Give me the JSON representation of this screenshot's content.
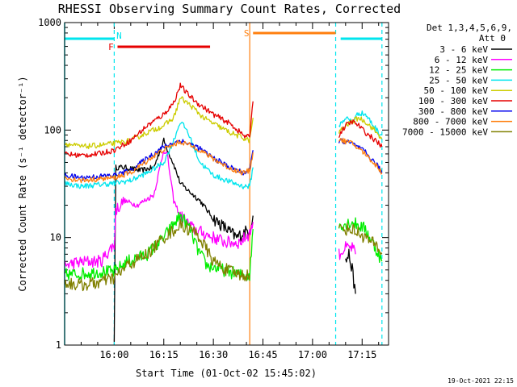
{
  "chart_data": {
    "type": "line",
    "title": "RHESSI Observing Summary Count Rates, Corrected",
    "xlabel": "Start Time (01-Oct-02 15:45:02)",
    "ylabel": "Corrected Count Rate (s⁻¹ detector⁻¹)",
    "yscale": "log",
    "ylim": [
      1,
      1000
    ],
    "xlim_minutes": [
      -15.0,
      83.0
    ],
    "x_units": "minutes after 16:00 (01-Oct-02)",
    "x_ticks": [
      {
        "label": "16:00",
        "m": 0
      },
      {
        "label": "16:15",
        "m": 15
      },
      {
        "label": "16:30",
        "m": 30
      },
      {
        "label": "16:45",
        "m": 45
      },
      {
        "label": "17:00",
        "m": 60
      },
      {
        "label": "17:15",
        "m": 75
      }
    ],
    "y_ticks": [
      {
        "label": "1",
        "v": 1
      },
      {
        "label": "10",
        "v": 10
      },
      {
        "label": "100",
        "v": 100
      },
      {
        "label": "1000",
        "v": 1000
      }
    ],
    "detectors": "Det 1,3,4,5,6,9,",
    "attenuator": "Att 0",
    "timestamp": "19-Oct-2021 22:15",
    "gap_minutes": [
      42.0,
      67.5
    ],
    "flags": [
      {
        "label": "N",
        "color": "#00e5ee",
        "segments": [
          [
            -15.0,
            0.0
          ],
          [
            68.5,
            81.0
          ]
        ]
      },
      {
        "label": "F",
        "color": "#e60000",
        "segments": [
          [
            1.0,
            29.0
          ]
        ]
      },
      {
        "label": "S",
        "color": "#ff7f0e",
        "segments": [
          [
            42.0,
            67.0
          ]
        ]
      }
    ],
    "vlines": [
      {
        "m": 0.0,
        "color": "#00e5ee",
        "style": "dashed"
      },
      {
        "m": 41.0,
        "color": "#ff7f0e",
        "style": "solid"
      },
      {
        "m": 67.0,
        "color": "#00e5ee",
        "style": "dashed"
      },
      {
        "m": 81.0,
        "color": "#00e5ee",
        "style": "dashed"
      }
    ],
    "series": [
      {
        "name": "3 - 6 keV",
        "color": "#000000",
        "points": [
          [
            0,
            1.2
          ],
          [
            0.5,
            45
          ],
          [
            3,
            45
          ],
          [
            8,
            42
          ],
          [
            12,
            45
          ],
          [
            15,
            80
          ],
          [
            18,
            48
          ],
          [
            20,
            32
          ],
          [
            22,
            28
          ],
          [
            26,
            22
          ],
          [
            30,
            15
          ],
          [
            34,
            12
          ],
          [
            37,
            10
          ],
          [
            39,
            11
          ],
          [
            41,
            12
          ],
          [
            42,
            16
          ],
          [
            70,
            6
          ],
          [
            71,
            7
          ],
          [
            72,
            5
          ],
          [
            73,
            3
          ]
        ]
      },
      {
        "name": "6 - 12 keV",
        "color": "#ff00ff",
        "points": [
          [
            -15,
            5.5
          ],
          [
            -12,
            5.8
          ],
          [
            -8,
            6
          ],
          [
            -4,
            6
          ],
          [
            -1,
            8
          ],
          [
            0,
            8.5
          ],
          [
            0.5,
            18
          ],
          [
            3,
            22
          ],
          [
            7,
            20
          ],
          [
            12,
            25
          ],
          [
            15,
            65
          ],
          [
            16,
            60
          ],
          [
            18,
            22
          ],
          [
            20,
            16
          ],
          [
            24,
            12
          ],
          [
            30,
            10
          ],
          [
            34,
            9
          ],
          [
            38,
            9
          ],
          [
            41,
            11
          ],
          [
            42,
            14
          ],
          [
            68,
            7
          ],
          [
            70,
            8
          ],
          [
            72,
            8
          ],
          [
            73,
            7
          ]
        ]
      },
      {
        "name": "12 - 25 keV",
        "color": "#00ee00",
        "points": [
          [
            -15,
            4.5
          ],
          [
            -10,
            4.6
          ],
          [
            -5,
            4.8
          ],
          [
            0,
            4.8
          ],
          [
            4,
            6
          ],
          [
            10,
            7
          ],
          [
            15,
            10
          ],
          [
            20,
            16
          ],
          [
            23,
            12
          ],
          [
            25,
            8
          ],
          [
            28,
            5.5
          ],
          [
            33,
            5
          ],
          [
            38,
            4.5
          ],
          [
            41,
            4.5
          ],
          [
            42,
            12
          ],
          [
            68,
            13
          ],
          [
            72,
            14
          ],
          [
            76,
            12
          ],
          [
            80,
            7
          ],
          [
            81,
            6
          ]
        ]
      },
      {
        "name": "25 - 50 keV",
        "color": "#00e5ee",
        "points": [
          [
            -15,
            32
          ],
          [
            -10,
            30
          ],
          [
            -5,
            31
          ],
          [
            0,
            32
          ],
          [
            5,
            34
          ],
          [
            10,
            40
          ],
          [
            15,
            50
          ],
          [
            18,
            80
          ],
          [
            20,
            120
          ],
          [
            22,
            100
          ],
          [
            24,
            70
          ],
          [
            26,
            50
          ],
          [
            30,
            38
          ],
          [
            35,
            33
          ],
          [
            39,
            30
          ],
          [
            41,
            30
          ],
          [
            42,
            45
          ],
          [
            68,
            110
          ],
          [
            70,
            130
          ],
          [
            72,
            120
          ],
          [
            74,
            145
          ],
          [
            76,
            140
          ],
          [
            78,
            115
          ],
          [
            80,
            95
          ],
          [
            81,
            90
          ]
        ]
      },
      {
        "name": "50 - 100 keV",
        "color": "#cccc00",
        "points": [
          [
            -15,
            75
          ],
          [
            -10,
            70
          ],
          [
            -5,
            72
          ],
          [
            0,
            75
          ],
          [
            5,
            80
          ],
          [
            10,
            95
          ],
          [
            15,
            110
          ],
          [
            18,
            130
          ],
          [
            20,
            200
          ],
          [
            22,
            180
          ],
          [
            24,
            160
          ],
          [
            27,
            130
          ],
          [
            30,
            115
          ],
          [
            35,
            95
          ],
          [
            40,
            82
          ],
          [
            41,
            80
          ],
          [
            42,
            130
          ],
          [
            68,
            95
          ],
          [
            70,
            110
          ],
          [
            72,
            120
          ],
          [
            74,
            130
          ],
          [
            76,
            120
          ],
          [
            78,
            105
          ],
          [
            80,
            90
          ],
          [
            81,
            85
          ]
        ]
      },
      {
        "name": "100 - 300 keV",
        "color": "#e60000",
        "points": [
          [
            -15,
            60
          ],
          [
            -10,
            58
          ],
          [
            -5,
            60
          ],
          [
            0,
            65
          ],
          [
            5,
            80
          ],
          [
            10,
            110
          ],
          [
            15,
            140
          ],
          [
            18,
            180
          ],
          [
            20,
            260
          ],
          [
            22,
            220
          ],
          [
            25,
            180
          ],
          [
            30,
            140
          ],
          [
            35,
            115
          ],
          [
            40,
            85
          ],
          [
            41,
            90
          ],
          [
            42,
            185
          ],
          [
            68,
            90
          ],
          [
            70,
            110
          ],
          [
            72,
            120
          ],
          [
            74,
            110
          ],
          [
            76,
            95
          ],
          [
            78,
            85
          ],
          [
            80,
            75
          ],
          [
            81,
            70
          ]
        ]
      },
      {
        "name": "300 - 800 keV",
        "color": "#0000ee",
        "points": [
          [
            -15,
            38
          ],
          [
            -10,
            36
          ],
          [
            -5,
            37
          ],
          [
            0,
            38
          ],
          [
            5,
            42
          ],
          [
            10,
            55
          ],
          [
            15,
            70
          ],
          [
            20,
            80
          ],
          [
            25,
            70
          ],
          [
            30,
            55
          ],
          [
            35,
            45
          ],
          [
            39,
            40
          ],
          [
            41,
            42
          ],
          [
            42,
            65
          ],
          [
            68,
            80
          ],
          [
            72,
            75
          ],
          [
            76,
            62
          ],
          [
            80,
            45
          ],
          [
            81,
            40
          ]
        ]
      },
      {
        "name": "800 - 7000 keV",
        "color": "#ff7f0e",
        "points": [
          [
            -15,
            36
          ],
          [
            -10,
            34
          ],
          [
            -5,
            35
          ],
          [
            0,
            36
          ],
          [
            5,
            40
          ],
          [
            10,
            52
          ],
          [
            15,
            66
          ],
          [
            20,
            78
          ],
          [
            25,
            68
          ],
          [
            30,
            54
          ],
          [
            35,
            44
          ],
          [
            39,
            40
          ],
          [
            41,
            42
          ],
          [
            42,
            62
          ],
          [
            68,
            82
          ],
          [
            72,
            75
          ],
          [
            76,
            60
          ],
          [
            80,
            44
          ],
          [
            81,
            40
          ]
        ]
      },
      {
        "name": "7000 - 15000 keV",
        "color": "#808000",
        "points": [
          [
            -15,
            3.8
          ],
          [
            -10,
            3.6
          ],
          [
            -5,
            3.8
          ],
          [
            0,
            4.2
          ],
          [
            4,
            5.5
          ],
          [
            10,
            7
          ],
          [
            15,
            10
          ],
          [
            20,
            13
          ],
          [
            25,
            11
          ],
          [
            30,
            6
          ],
          [
            34,
            5
          ],
          [
            38,
            4.5
          ],
          [
            41,
            4.5
          ],
          [
            68,
            12
          ],
          [
            72,
            12
          ],
          [
            76,
            10
          ],
          [
            80,
            8
          ],
          [
            81,
            7
          ]
        ]
      }
    ]
  }
}
